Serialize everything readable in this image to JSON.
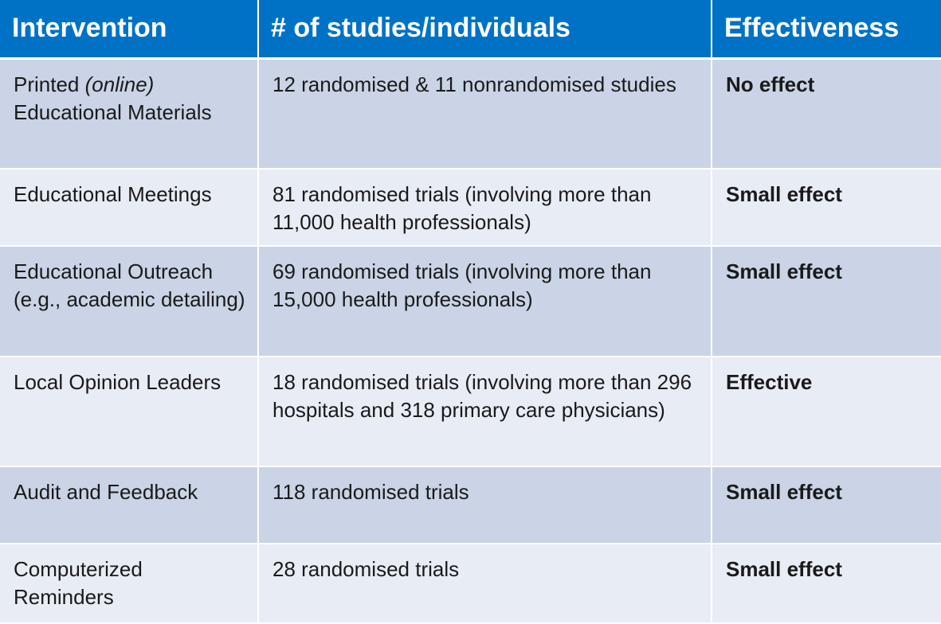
{
  "table": {
    "headers": [
      "Intervention",
      "# of studies/individuals",
      "Effectiveness"
    ],
    "rows": [
      {
        "intervention_pre": "Printed ",
        "intervention_italic": "(online)",
        "intervention_post": " Educational Materials",
        "studies": "12 randomised & 11 nonrandomised studies",
        "effectiveness": "No effect"
      },
      {
        "intervention": "Educational Meetings",
        "studies": "81 randomised trials (involving more than 11,000 health professionals)",
        "effectiveness": "Small effect"
      },
      {
        "intervention": "Educational Outreach (e.g., academic detailing)",
        "studies": "69 randomised trials (involving more than 15,000 health professionals)",
        "effectiveness": "Small effect"
      },
      {
        "intervention": "Local Opinion Leaders",
        "studies": "18 randomised trials (involving more than 296 hospitals and 318 primary care physicians)",
        "effectiveness": "Effective"
      },
      {
        "intervention": "Audit and Feedback",
        "studies": "118 randomised trials",
        "effectiveness": "Small effect"
      },
      {
        "intervention": "Computerized Reminders",
        "studies": "28 randomised trials",
        "effectiveness": "Small effect"
      }
    ]
  },
  "colors": {
    "header_bg": "#0072c6",
    "row_odd_bg": "#cad4e6",
    "row_even_bg": "#e8ecf4"
  }
}
